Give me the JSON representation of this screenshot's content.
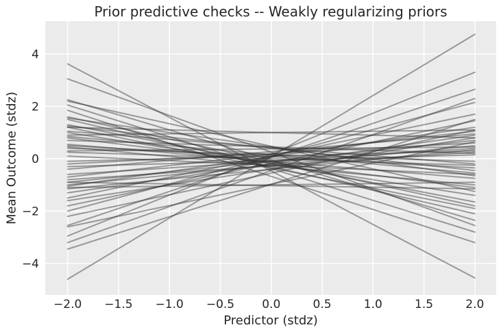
{
  "chart_data": {
    "type": "line",
    "title": "Prior predictive checks -- Weakly regularizing priors",
    "xlabel": "Predictor (stdz)",
    "ylabel": "Mean Outcome (stdz)",
    "xlim": [
      -2.22,
      2.21
    ],
    "ylim": [
      -5.2,
      5.25
    ],
    "xticks": [
      -2.0,
      -1.5,
      -1.0,
      -0.5,
      0.0,
      0.5,
      1.0,
      1.5,
      2.0
    ],
    "xtick_labels": [
      "−2.0",
      "−1.5",
      "−1.0",
      "−0.5",
      "0.0",
      "0.5",
      "1.0",
      "1.5",
      "2.0"
    ],
    "yticks": [
      -4,
      -2,
      0,
      2,
      4
    ],
    "ytick_labels": [
      "−4",
      "−2",
      "0",
      "2",
      "4"
    ],
    "grid": true,
    "legend": "none",
    "lines_note": "Each entry is one prior predictive regression line: [y at x=-2, y at x=+2], straight segment between.",
    "line_x_range": [
      -2,
      2
    ],
    "lines": [
      [
        3.62,
        -4.55
      ],
      [
        3.05,
        -2.55
      ],
      [
        2.25,
        -2.35
      ],
      [
        2.2,
        -1.25
      ],
      [
        2.05,
        -2.8
      ],
      [
        1.85,
        -3.2
      ],
      [
        1.6,
        -1.8
      ],
      [
        1.55,
        -0.65
      ],
      [
        1.5,
        -2.1
      ],
      [
        1.3,
        -1.65
      ],
      [
        1.25,
        -0.45
      ],
      [
        1.2,
        -1.9
      ],
      [
        1.05,
        -0.2
      ],
      [
        1.0,
        -1.4
      ],
      [
        0.85,
        -0.55
      ],
      [
        0.8,
        -1.1
      ],
      [
        0.7,
        0.2
      ],
      [
        0.55,
        -0.75
      ],
      [
        0.5,
        -0.35
      ],
      [
        1.2,
        0.8
      ],
      [
        0.45,
        -1.0
      ],
      [
        0.4,
        -0.1
      ],
      [
        0.3,
        0.45
      ],
      [
        0.25,
        -0.25
      ],
      [
        0.9,
        1.1
      ],
      [
        0.1,
        -0.6
      ],
      [
        -0.1,
        0.3
      ],
      [
        -1.1,
        -0.9
      ],
      [
        -0.2,
        0.6
      ],
      [
        -0.3,
        0.15
      ],
      [
        -0.4,
        0.95
      ],
      [
        -0.6,
        0.4
      ],
      [
        -0.9,
        -1.15
      ],
      [
        -0.7,
        1.05
      ],
      [
        -0.8,
        0.25
      ],
      [
        -0.9,
        0.7
      ],
      [
        -1.0,
        0.5
      ],
      [
        -1.05,
        1.2
      ],
      [
        -1.15,
        0.35
      ],
      [
        -1.3,
        0.9
      ],
      [
        -1.5,
        1.7
      ],
      [
        -1.6,
        0.8
      ],
      [
        -1.8,
        1.45
      ],
      [
        -2.0,
        2.15
      ],
      [
        -2.2,
        1.1
      ],
      [
        -2.55,
        2.65
      ],
      [
        -2.6,
        0.65
      ],
      [
        -2.95,
        3.3
      ],
      [
        -3.2,
        2.3
      ],
      [
        -3.45,
        1.5
      ],
      [
        -4.6,
        4.75
      ]
    ],
    "style": {
      "figure_bg": "#ffffff",
      "axes_bg": "#ebebeb",
      "grid_color": "#ffffff",
      "line_color": "#303030",
      "line_opacity": 0.45,
      "line_width": 2,
      "text_color": "#262626"
    }
  }
}
